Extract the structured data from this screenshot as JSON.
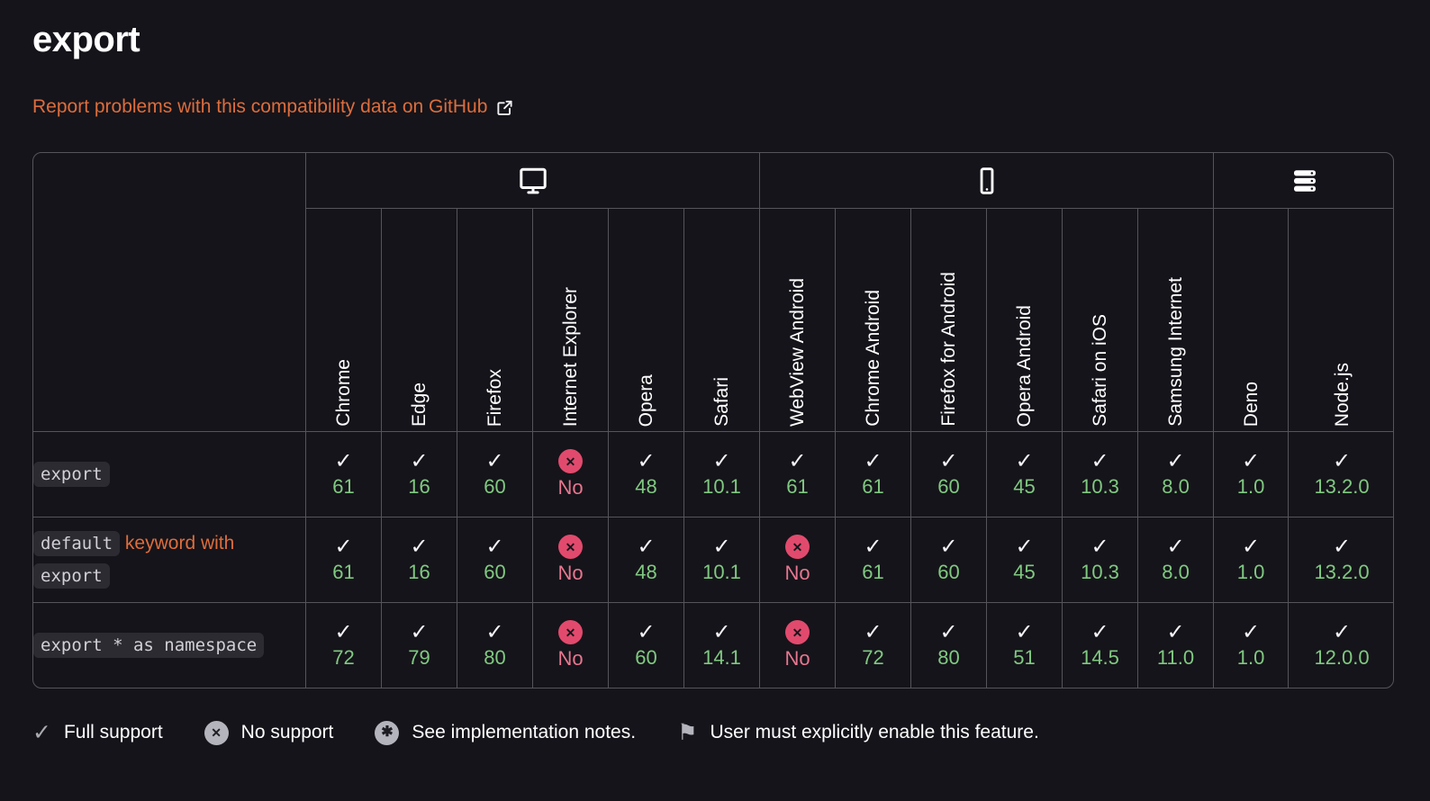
{
  "header": {
    "title": "export"
  },
  "report_link": {
    "label": "Report problems with this compatibility data on GitHub"
  },
  "table": {
    "groups": [
      {
        "name": "desktop",
        "icon": "desktop-icon",
        "span": 6
      },
      {
        "name": "mobile",
        "icon": "mobile-icon",
        "span": 6
      },
      {
        "name": "server",
        "icon": "server-icon",
        "span": 2
      }
    ],
    "browsers": [
      "Chrome",
      "Edge",
      "Firefox",
      "Internet Explorer",
      "Opera",
      "Safari",
      "WebView Android",
      "Chrome Android",
      "Firefox for Android",
      "Opera Android",
      "Safari on iOS",
      "Samsung Internet",
      "Deno",
      "Node.js"
    ],
    "rows": [
      {
        "feature_parts": [
          {
            "type": "code",
            "text": "export"
          }
        ],
        "cells": [
          {
            "status": "yes",
            "label": "61"
          },
          {
            "status": "yes",
            "label": "16"
          },
          {
            "status": "yes",
            "label": "60"
          },
          {
            "status": "no",
            "label": "No"
          },
          {
            "status": "yes",
            "label": "48"
          },
          {
            "status": "yes",
            "label": "10.1"
          },
          {
            "status": "yes",
            "label": "61"
          },
          {
            "status": "yes",
            "label": "61"
          },
          {
            "status": "yes",
            "label": "60"
          },
          {
            "status": "yes",
            "label": "45"
          },
          {
            "status": "yes",
            "label": "10.3"
          },
          {
            "status": "yes",
            "label": "8.0"
          },
          {
            "status": "yes",
            "label": "1.0"
          },
          {
            "status": "yes",
            "label": "13.2.0"
          }
        ]
      },
      {
        "feature_parts": [
          {
            "type": "code",
            "text": "default"
          },
          {
            "type": "link",
            "text": "keyword with"
          },
          {
            "type": "code",
            "text": "export"
          }
        ],
        "cells": [
          {
            "status": "yes",
            "label": "61"
          },
          {
            "status": "yes",
            "label": "16"
          },
          {
            "status": "yes",
            "label": "60"
          },
          {
            "status": "no",
            "label": "No"
          },
          {
            "status": "yes",
            "label": "48"
          },
          {
            "status": "yes",
            "label": "10.1"
          },
          {
            "status": "no",
            "label": "No"
          },
          {
            "status": "yes",
            "label": "61"
          },
          {
            "status": "yes",
            "label": "60"
          },
          {
            "status": "yes",
            "label": "45"
          },
          {
            "status": "yes",
            "label": "10.3"
          },
          {
            "status": "yes",
            "label": "8.0"
          },
          {
            "status": "yes",
            "label": "1.0"
          },
          {
            "status": "yes",
            "label": "13.2.0"
          }
        ]
      },
      {
        "feature_parts": [
          {
            "type": "code",
            "text": "export * as namespace"
          }
        ],
        "cells": [
          {
            "status": "yes",
            "label": "72"
          },
          {
            "status": "yes",
            "label": "79"
          },
          {
            "status": "yes",
            "label": "80"
          },
          {
            "status": "no",
            "label": "No"
          },
          {
            "status": "yes",
            "label": "60"
          },
          {
            "status": "yes",
            "label": "14.1"
          },
          {
            "status": "no",
            "label": "No"
          },
          {
            "status": "yes",
            "label": "72"
          },
          {
            "status": "yes",
            "label": "80"
          },
          {
            "status": "yes",
            "label": "51"
          },
          {
            "status": "yes",
            "label": "14.5"
          },
          {
            "status": "yes",
            "label": "11.0"
          },
          {
            "status": "yes",
            "label": "1.0"
          },
          {
            "status": "yes",
            "label": "12.0.0"
          }
        ]
      }
    ]
  },
  "legend": {
    "items": [
      {
        "icon": "check-icon",
        "label": "Full support"
      },
      {
        "icon": "no-support-icon",
        "label": "No support"
      },
      {
        "icon": "implementation-notes-icon",
        "label": "See implementation notes."
      },
      {
        "icon": "flag-icon",
        "label": "User must explicitly enable this feature."
      }
    ]
  },
  "colors": {
    "background": "#15141a",
    "border": "#54545a",
    "accent_orange": "#dd6d3c",
    "support_green": "#80c981",
    "no_support_pink": "#e24a6d",
    "code_chip_bg": "#2b2b31"
  }
}
